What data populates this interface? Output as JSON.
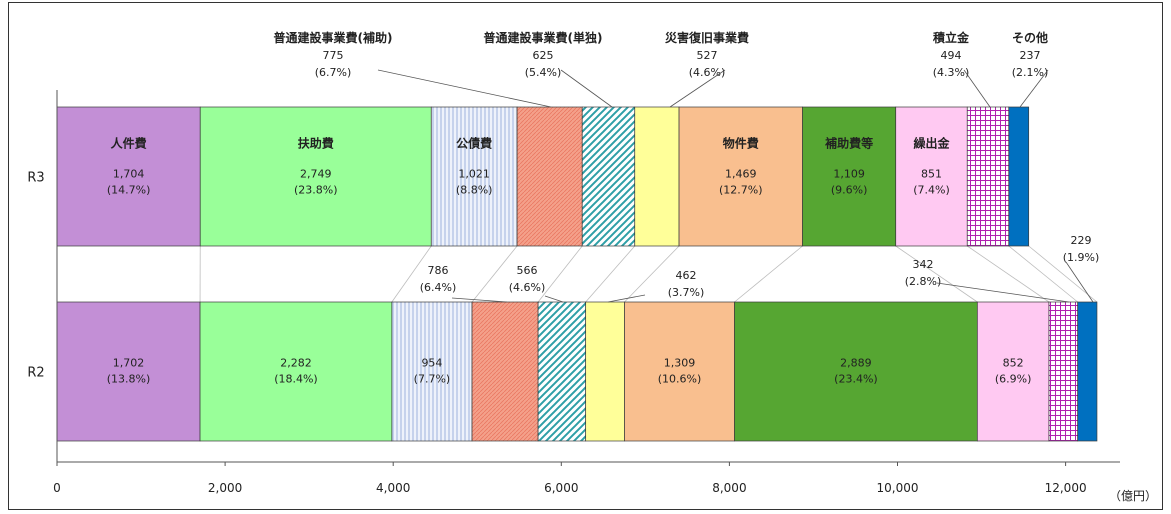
{
  "chart_data": {
    "type": "bar",
    "orientation": "horizontal",
    "stacked": true,
    "categories": [
      "R3",
      "R2"
    ],
    "unit": "（億円）",
    "xlim": [
      0,
      12500
    ],
    "x_ticks": [
      "0",
      "2,000",
      "4,000",
      "6,000",
      "8,000",
      "10,000",
      "12,000"
    ],
    "grid": false,
    "series": [
      {
        "name": "人件費",
        "values": [
          1704,
          1702
        ],
        "labels": [
          "1,704",
          "1,702"
        ],
        "pcts": [
          "(14.7%)",
          "(13.8%)"
        ],
        "color": "#c38fd6",
        "pattern": "solid",
        "label_mode": [
          "inside",
          "inside"
        ]
      },
      {
        "name": "扶助費",
        "values": [
          2749,
          2282
        ],
        "labels": [
          "2,749",
          "2,282"
        ],
        "pcts": [
          "(23.8%)",
          "(18.4%)"
        ],
        "color": "#99ff99",
        "pattern": "solid",
        "label_mode": [
          "inside",
          "inside"
        ]
      },
      {
        "name": "公債費",
        "values": [
          1021,
          954
        ],
        "labels": [
          "1,021",
          "954"
        ],
        "pcts": [
          "(8.8%)",
          "(7.7%)"
        ],
        "color": "#eef2fb",
        "pattern": "vstripe",
        "label_mode": [
          "inside",
          "inside"
        ]
      },
      {
        "name": "普通建設事業費(補助)",
        "values": [
          775,
          786
        ],
        "labels": [
          "775",
          "786"
        ],
        "pcts": [
          "(6.7%)",
          "(6.4%)"
        ],
        "color": "#f4a08a",
        "pattern": "fine",
        "label_mode": [
          "callout",
          "callout"
        ]
      },
      {
        "name": "普通建設事業費(単独)",
        "values": [
          625,
          566
        ],
        "labels": [
          "625",
          "566"
        ],
        "pcts": [
          "(5.4%)",
          "(4.6%)"
        ],
        "color": "#9adbe0",
        "pattern": "diag",
        "label_mode": [
          "callout",
          "callout"
        ]
      },
      {
        "name": "災害復旧事業費",
        "values": [
          527,
          462
        ],
        "labels": [
          "527",
          "462"
        ],
        "pcts": [
          "(4.6%)",
          "(3.7%)"
        ],
        "color": "#ffff99",
        "pattern": "solid",
        "label_mode": [
          "callout",
          "callout"
        ]
      },
      {
        "name": "物件費",
        "values": [
          1469,
          1309
        ],
        "labels": [
          "1,469",
          "1,309"
        ],
        "pcts": [
          "(12.7%)",
          "(10.6%)"
        ],
        "color": "#f9bf8f",
        "pattern": "solid",
        "label_mode": [
          "inside",
          "inside"
        ]
      },
      {
        "name": "補助費等",
        "values": [
          1109,
          2889
        ],
        "labels": [
          "1,109",
          "2,889"
        ],
        "pcts": [
          "(9.6%)",
          "(23.4%)"
        ],
        "color": "#56a632",
        "pattern": "solid",
        "label_mode": [
          "inside",
          "inside"
        ]
      },
      {
        "name": "繰出金",
        "values": [
          851,
          852
        ],
        "labels": [
          "851",
          "852"
        ],
        "pcts": [
          "(7.4%)",
          "(6.9%)"
        ],
        "color": "#ffc9f2",
        "pattern": "solid",
        "label_mode": [
          "inside",
          "inside"
        ]
      },
      {
        "name": "積立金",
        "values": [
          494,
          342
        ],
        "labels": [
          "494",
          "342"
        ],
        "pcts": [
          "(4.3%)",
          "(2.8%)"
        ],
        "color": "#cc33cc",
        "pattern": "grid",
        "label_mode": [
          "callout",
          "callout"
        ]
      },
      {
        "name": "その他",
        "values": [
          237,
          229
        ],
        "labels": [
          "237",
          "229"
        ],
        "pcts": [
          "(2.1%)",
          "(1.9%)"
        ],
        "color": "#0070c0",
        "pattern": "solid",
        "label_mode": [
          "callout",
          "callout"
        ]
      }
    ]
  }
}
